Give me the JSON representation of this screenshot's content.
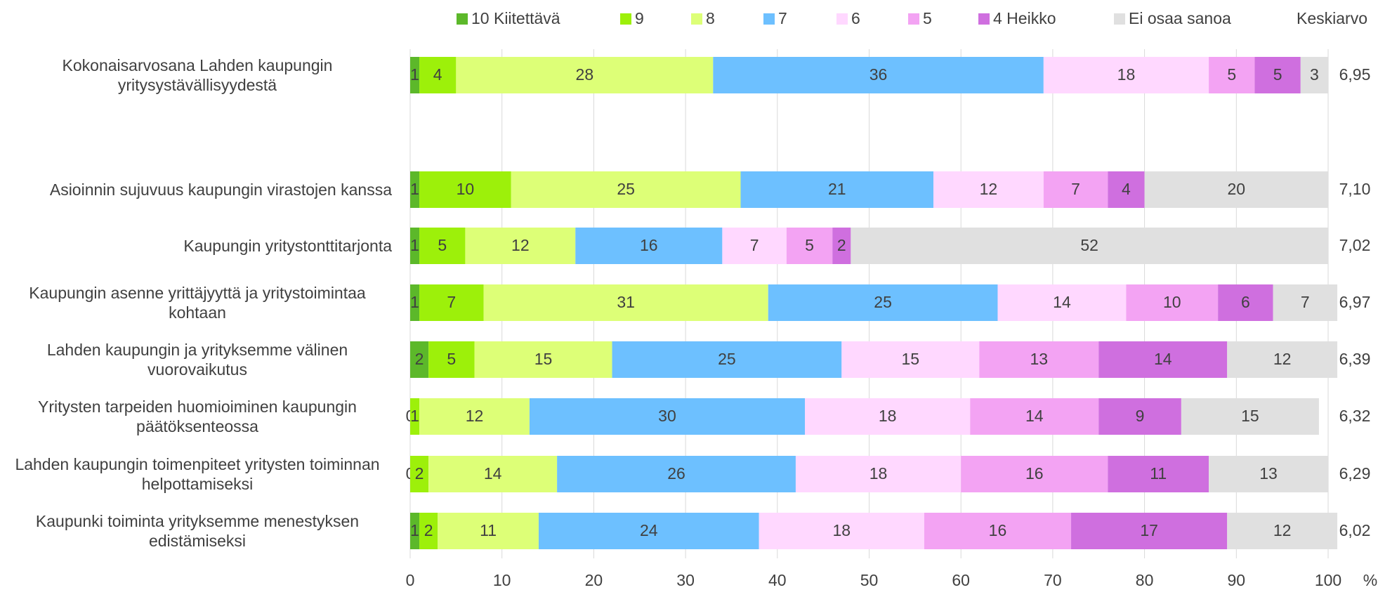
{
  "chart_data": {
    "type": "stacked_bar_horizontal",
    "categories": [
      "Kokonaisarvosana Lahden kaupungin yritysystävällisyydestä",
      "Asioinnin sujuvuus kaupungin virastojen kanssa",
      "Kaupungin yritystonttitarjonta",
      "Kaupungin asenne yrittäjyyttä ja yritystoimintaa kohtaan",
      "Lahden kaupungin ja yrityksemme välinen vuorovaikutus",
      "Yritysten tarpeiden huomioiminen kaupungin päätöksenteossa",
      "Lahden kaupungin toimenpiteet yritysten toiminnan helpottamiseksi",
      "Kaupunki toiminta yrityksemme menestyksen edistämiseksi"
    ],
    "series": [
      {
        "name": "10 Kiitettävä",
        "color": "#5cb82a",
        "values": [
          1,
          1,
          1,
          1,
          2,
          0,
          0,
          1
        ]
      },
      {
        "name": "9",
        "color": "#9df00a",
        "values": [
          4,
          10,
          5,
          7,
          5,
          1,
          2,
          2
        ]
      },
      {
        "name": "8",
        "color": "#ddff77",
        "values": [
          28,
          25,
          12,
          31,
          15,
          12,
          14,
          11
        ]
      },
      {
        "name": "7",
        "color": "#6dc0ff",
        "values": [
          36,
          21,
          16,
          25,
          25,
          30,
          26,
          24
        ]
      },
      {
        "name": "6",
        "color": "#ffd8ff",
        "values": [
          18,
          12,
          7,
          14,
          15,
          18,
          18,
          18
        ]
      },
      {
        "name": "5",
        "color": "#f3a3f3",
        "values": [
          5,
          7,
          5,
          10,
          13,
          14,
          16,
          16
        ]
      },
      {
        "name": "4 Heikko",
        "color": "#cf6fdf",
        "values": [
          5,
          4,
          2,
          6,
          14,
          9,
          11,
          17
        ]
      },
      {
        "name": "Ei osaa sanoa",
        "color": "#e0e0e0",
        "values": [
          3,
          20,
          52,
          7,
          12,
          15,
          13,
          12
        ]
      }
    ],
    "average": {
      "label": "Keskiarvo",
      "values": [
        6.95,
        7.1,
        7.02,
        6.97,
        6.39,
        6.32,
        6.29,
        6.02
      ],
      "value_labels": [
        "6,95",
        "7,10",
        "7,02",
        "6,97",
        "6,39",
        "6,32",
        "6,29",
        "6,02"
      ]
    },
    "xlim": [
      0,
      100
    ],
    "xticks": [
      0,
      10,
      20,
      30,
      40,
      50,
      60,
      70,
      80,
      90,
      100
    ],
    "x_unit": "%",
    "grid": true
  }
}
